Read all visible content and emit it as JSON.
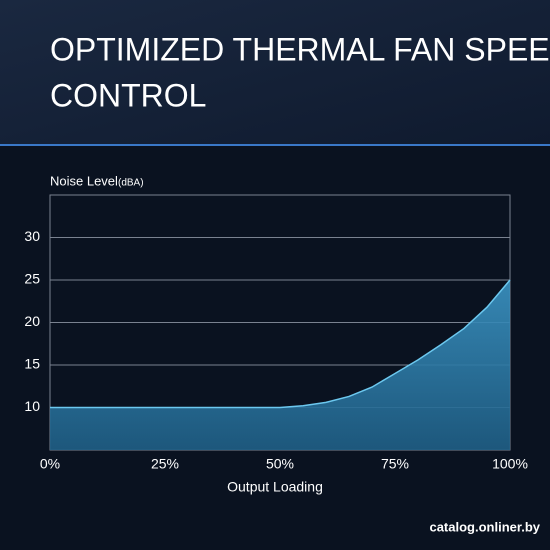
{
  "chart_data": {
    "type": "area",
    "title": "OPTIMIZED THERMAL FAN SPEED",
    "title_line2": "CONTROL",
    "y_label": "Noise Level",
    "y_unit": "(dBA)",
    "x_label": "Output Loading",
    "watermark": "catalog.onliner.by",
    "x": [
      0,
      10,
      20,
      30,
      40,
      50,
      55,
      60,
      65,
      70,
      75,
      80,
      85,
      90,
      95,
      100
    ],
    "series": [
      {
        "name": "Noise Level",
        "color": "#3a8fbd",
        "values": [
          10,
          10,
          10,
          10,
          10,
          10,
          10.2,
          10.6,
          11.3,
          12.4,
          14.0,
          15.6,
          17.4,
          19.3,
          21.8,
          25
        ]
      }
    ],
    "xlim": [
      0,
      100
    ],
    "xticks": [
      {
        "value": 0,
        "label": "0%"
      },
      {
        "value": 25,
        "label": "25%"
      },
      {
        "value": 50,
        "label": "50%"
      },
      {
        "value": 75,
        "label": "75%"
      },
      {
        "value": 100,
        "label": "100%"
      }
    ],
    "ylim": [
      5,
      35
    ],
    "yticks": [
      10,
      15,
      20,
      25,
      30
    ],
    "grid": true
  }
}
